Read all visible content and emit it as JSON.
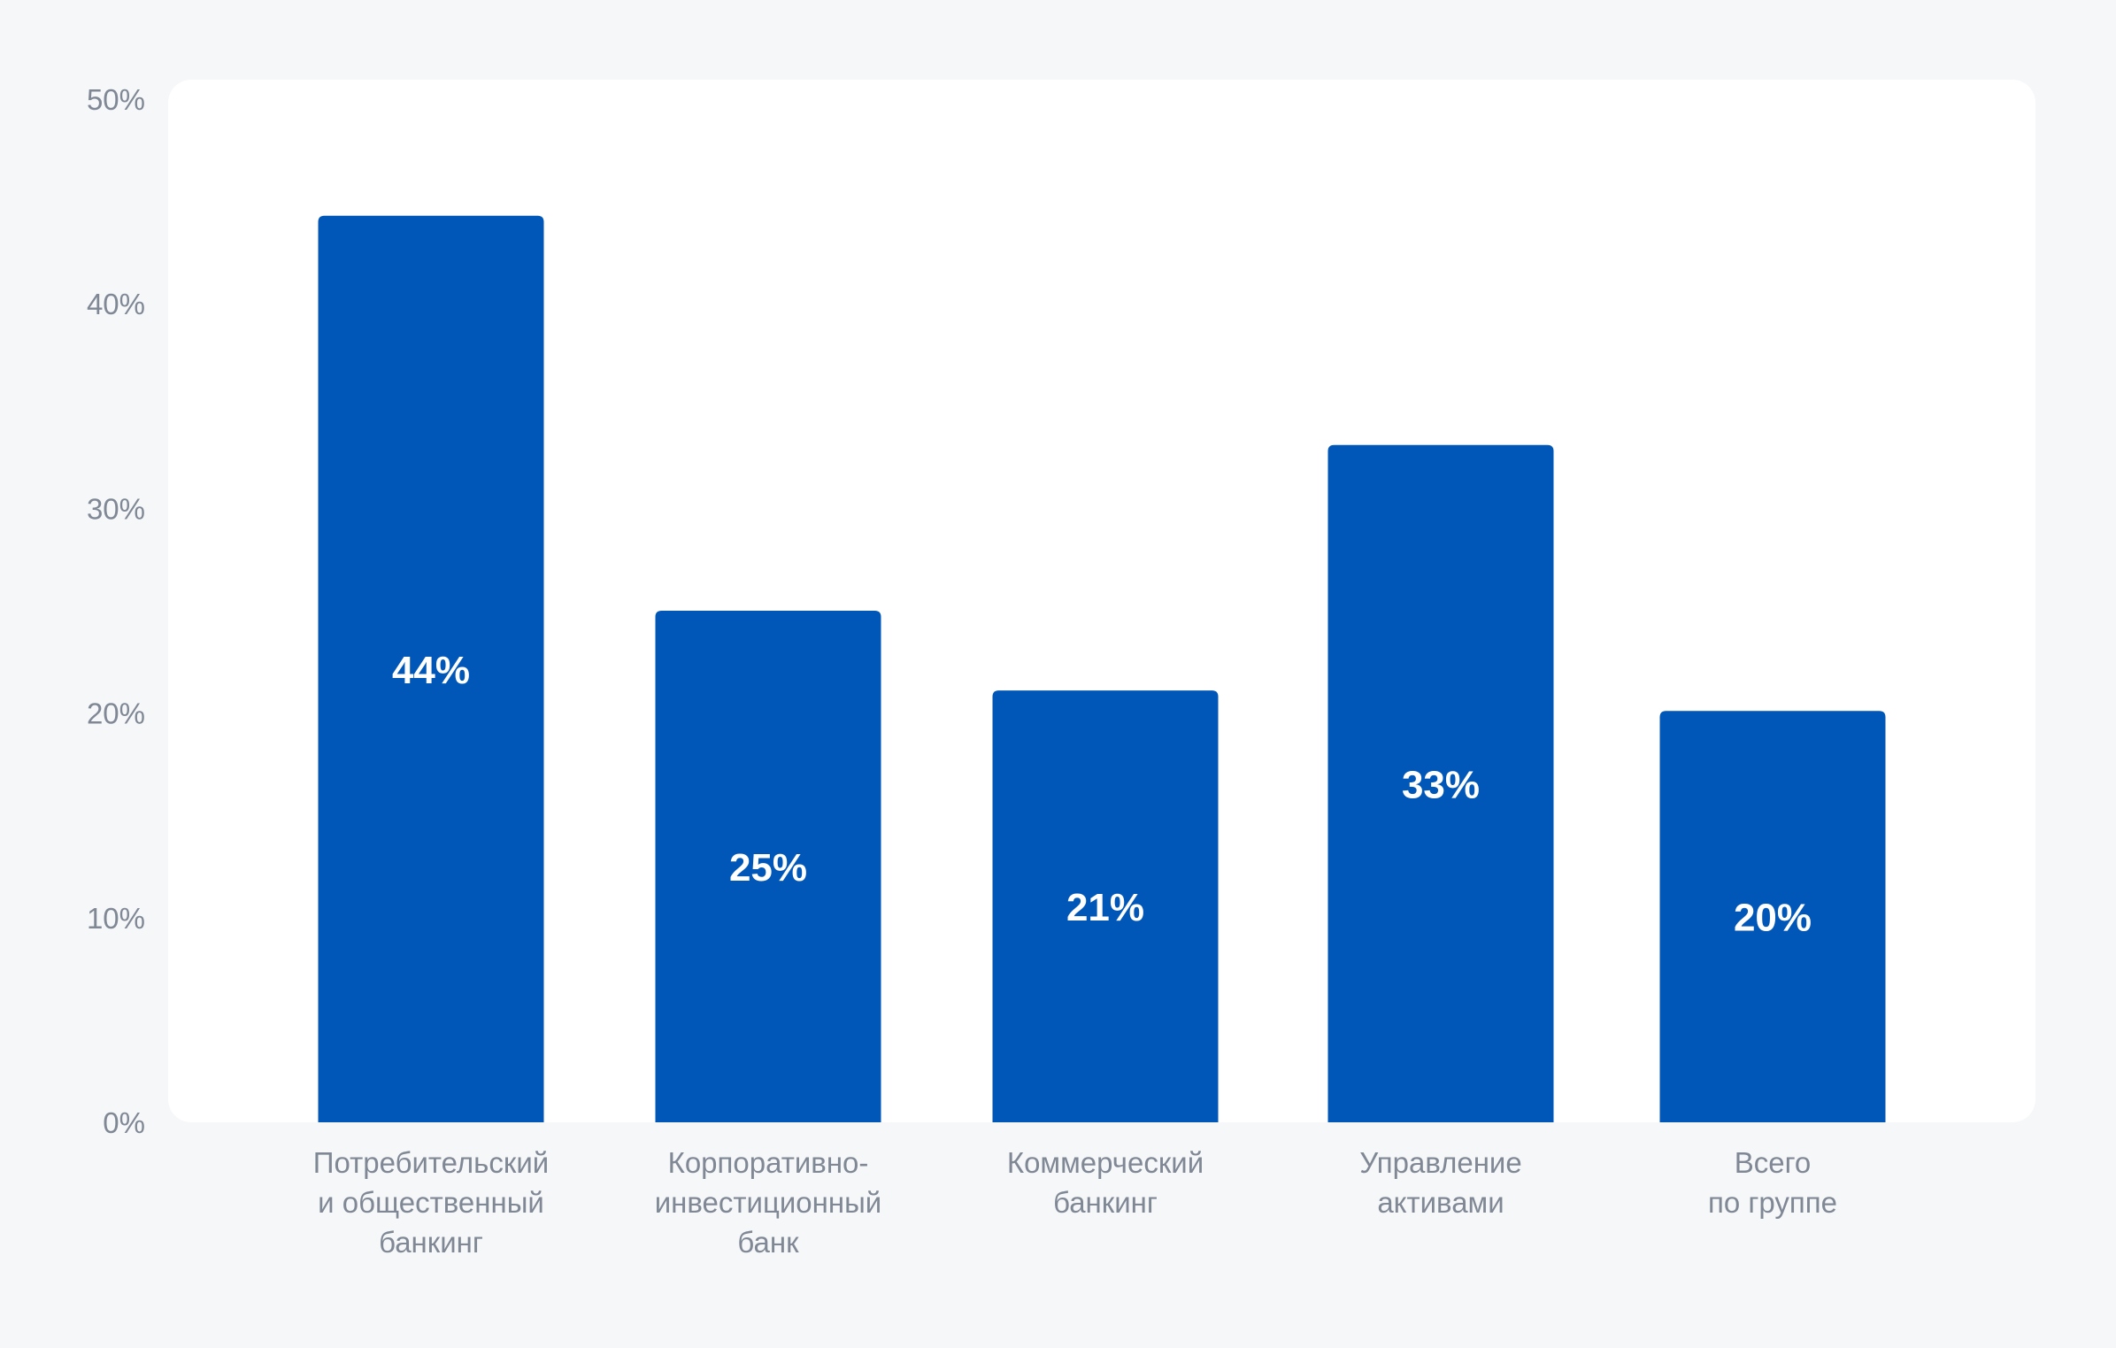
{
  "chart_data": {
    "type": "bar",
    "title": "",
    "xlabel": "",
    "ylabel": "",
    "ylim": [
      0,
      50
    ],
    "yticks": [
      {
        "value": 0,
        "label": "0%"
      },
      {
        "value": 10,
        "label": "10%"
      },
      {
        "value": 20,
        "label": "20%"
      },
      {
        "value": 30,
        "label": "30%"
      },
      {
        "value": 40,
        "label": "40%"
      },
      {
        "value": 50,
        "label": "50%"
      }
    ],
    "categories": [
      [
        "Потребительский",
        "и общественный",
        "банкинг"
      ],
      [
        "Корпоративно-",
        "инвестиционный",
        "банк"
      ],
      [
        "Коммерческий",
        "банкинг"
      ],
      [
        "Управление",
        "активами"
      ],
      [
        "Всего",
        "по группе"
      ]
    ],
    "values": [
      44.3,
      25,
      21.1,
      33.1,
      20.1
    ],
    "value_labels": [
      "44%",
      "25%",
      "21%",
      "33%",
      "20%"
    ],
    "grid": false,
    "legend": "none",
    "colors": {
      "bar": "#0057b8",
      "plot_background": "#ffffff",
      "page_background": "#f6f7f9",
      "axis_text": "#7f8894",
      "data_label": "#ffffff"
    }
  }
}
